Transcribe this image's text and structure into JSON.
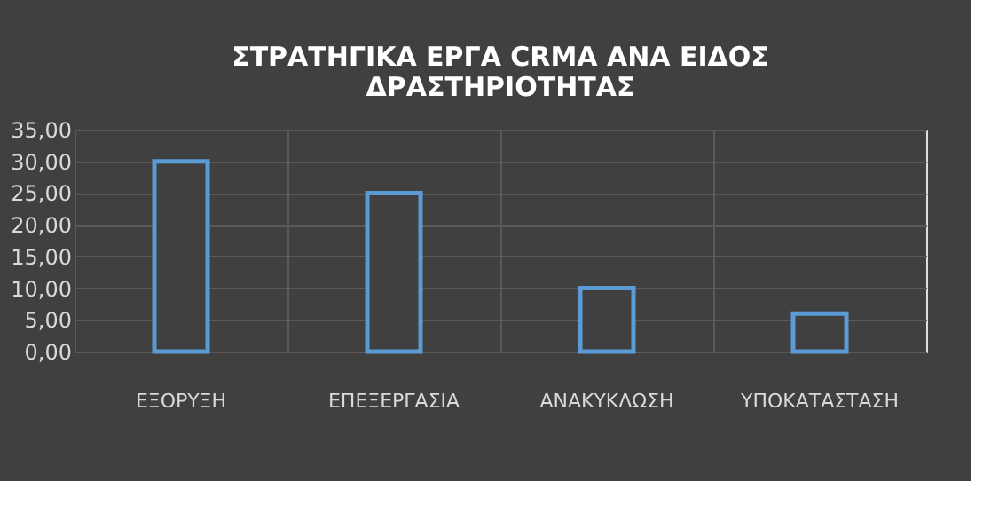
{
  "chart_data": {
    "type": "bar",
    "title": "ΣΤΡΑΤΗΓΙΚΑ ΕΡΓΑ CRMA ΑΝΑ ΕΙΔΟΣ ΔΡΑΣΤΗΡΙΟΤΗΤΑΣ",
    "categories": [
      "ΕΞΟΡΥΞΗ",
      "ΕΠΕΞΕΡΓΑΣΙΑ",
      "ΑΝΑΚΥΚΛΩΣΗ",
      "ΥΠΟΚΑΤΑΣΤΑΣΗ"
    ],
    "values": [
      30,
      25,
      10,
      6
    ],
    "color": "#5b9bd5",
    "ylim": [
      0,
      35
    ],
    "yticks": [
      {
        "value": 0,
        "label": "0,00"
      },
      {
        "value": 5,
        "label": "5,00"
      },
      {
        "value": 10,
        "label": "10,00"
      },
      {
        "value": 15,
        "label": "15,00"
      },
      {
        "value": 20,
        "label": "20,00"
      },
      {
        "value": 25,
        "label": "25,00"
      },
      {
        "value": 30,
        "label": "30,00"
      },
      {
        "value": 35,
        "label": "35,00"
      }
    ],
    "grid": true
  }
}
